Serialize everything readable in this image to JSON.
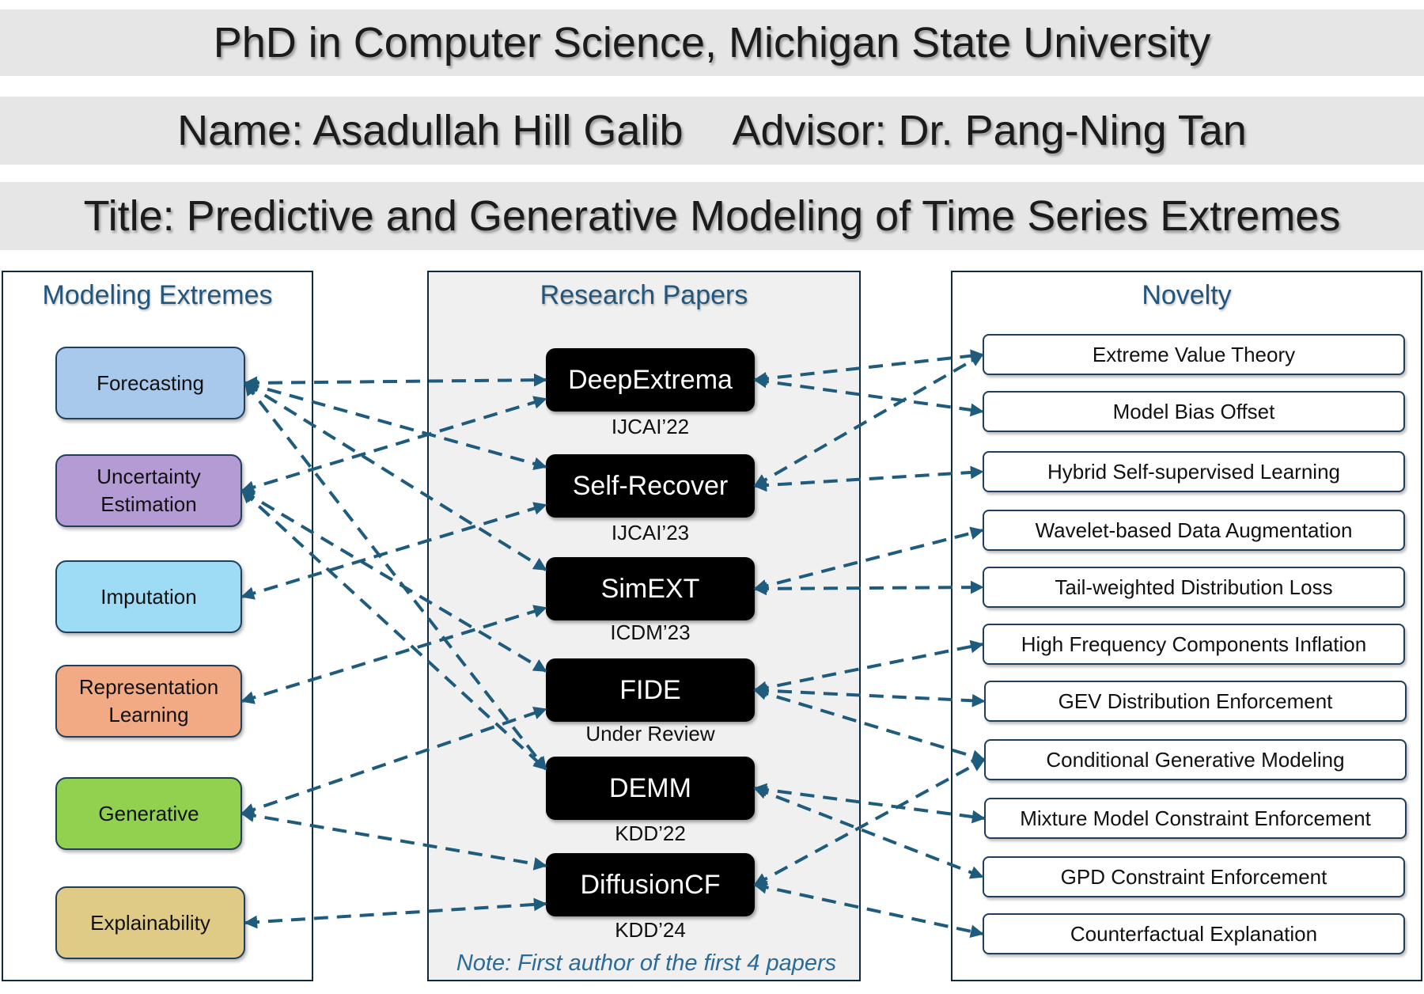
{
  "header": {
    "degree": "PhD in Computer Science, Michigan State University",
    "name": "Name: Asadullah Hill Galib",
    "advisor": "Advisor: Dr. Pang-Ning Tan",
    "title": "Title: Predictive and Generative Modeling of Time Series Extremes"
  },
  "columns": {
    "left_heading": "Modeling Extremes",
    "middle_heading": "Research Papers",
    "right_heading": "Novelty"
  },
  "tasks": [
    {
      "label": "Forecasting",
      "color": "#a9c9ec"
    },
    {
      "label": "Uncertainty\nEstimation",
      "color": "#b59bd4"
    },
    {
      "label": "Imputation",
      "color": "#9edcf5"
    },
    {
      "label": "Representation\nLearning",
      "color": "#f2aa85"
    },
    {
      "label": "Generative",
      "color": "#92d050"
    },
    {
      "label": "Explainability",
      "color": "#dfca86"
    }
  ],
  "papers": [
    {
      "name": "DeepExtrema",
      "venue": "IJCAI’22"
    },
    {
      "name": "Self-Recover",
      "venue": "IJCAI’23"
    },
    {
      "name": "SimEXT",
      "venue": "ICDM’23"
    },
    {
      "name": "FIDE",
      "venue": "Under Review"
    },
    {
      "name": "DEMM",
      "venue": "KDD’22"
    },
    {
      "name": "DiffusionCF",
      "venue": "KDD’24"
    }
  ],
  "note": "Note: First author of the first 4 papers",
  "novelties": [
    "Extreme Value Theory",
    "Model Bias Offset",
    "Hybrid Self-supervised Learning",
    "Wavelet-based Data Augmentation",
    "Tail-weighted Distribution Loss",
    "High Frequency Components Inflation",
    "GEV Distribution Enforcement",
    "Conditional Generative Modeling",
    "Mixture Model Constraint Enforcement",
    "GPD Constraint Enforcement",
    "Counterfactual Explanation"
  ],
  "links": [
    {
      "from": "Forecasting",
      "to": "DeepExtrema"
    },
    {
      "from": "Forecasting",
      "to": "Self-Recover"
    },
    {
      "from": "Forecasting",
      "to": "SimEXT"
    },
    {
      "from": "Forecasting",
      "to": "DEMM"
    },
    {
      "from": "Uncertainty Estimation",
      "to": "DeepExtrema"
    },
    {
      "from": "Uncertainty Estimation",
      "to": "FIDE"
    },
    {
      "from": "Uncertainty Estimation",
      "to": "DEMM"
    },
    {
      "from": "Imputation",
      "to": "Self-Recover"
    },
    {
      "from": "Representation Learning",
      "to": "SimEXT"
    },
    {
      "from": "Generative",
      "to": "FIDE"
    },
    {
      "from": "Generative",
      "to": "DiffusionCF"
    },
    {
      "from": "Explainability",
      "to": "DiffusionCF"
    },
    {
      "from": "DeepExtrema",
      "to": "Extreme Value Theory"
    },
    {
      "from": "DeepExtrema",
      "to": "Model Bias Offset"
    },
    {
      "from": "Self-Recover",
      "to": "Extreme Value Theory"
    },
    {
      "from": "Self-Recover",
      "to": "Hybrid Self-supervised Learning"
    },
    {
      "from": "SimEXT",
      "to": "Wavelet-based Data Augmentation"
    },
    {
      "from": "SimEXT",
      "to": "Tail-weighted Distribution Loss"
    },
    {
      "from": "FIDE",
      "to": "High Frequency Components Inflation"
    },
    {
      "from": "FIDE",
      "to": "GEV Distribution Enforcement"
    },
    {
      "from": "FIDE",
      "to": "Conditional Generative Modeling"
    },
    {
      "from": "DEMM",
      "to": "Mixture Model Constraint Enforcement"
    },
    {
      "from": "DEMM",
      "to": "GPD Constraint Enforcement"
    },
    {
      "from": "DiffusionCF",
      "to": "Conditional Generative Modeling"
    },
    {
      "from": "DiffusionCF",
      "to": "Counterfactual Explanation"
    }
  ]
}
